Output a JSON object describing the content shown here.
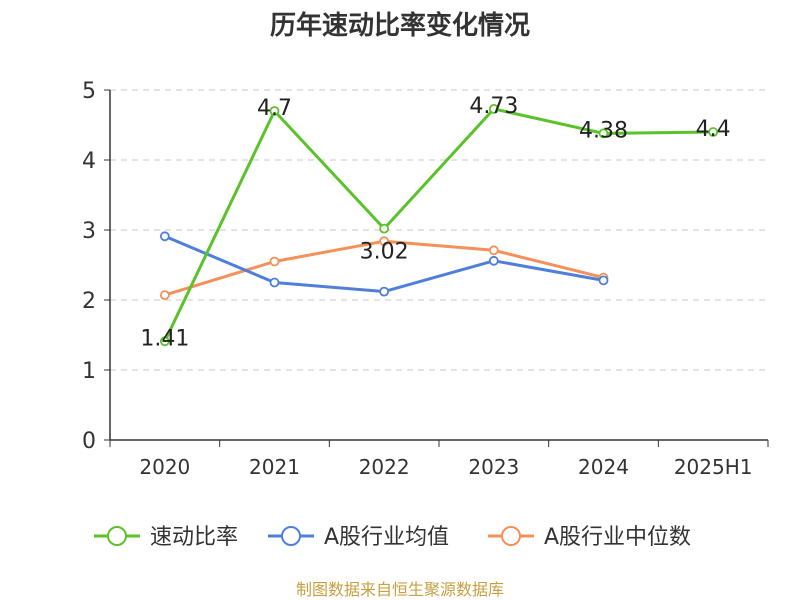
{
  "chart_data": {
    "type": "line",
    "title": "历年速动比率变化情况",
    "categories": [
      "2020",
      "2021",
      "2022",
      "2023",
      "2024",
      "2025H1"
    ],
    "ylim": [
      0,
      5
    ],
    "yticks": [
      "0",
      "1",
      "2",
      "3",
      "4",
      "5"
    ],
    "grid": true,
    "legend_position": "bottom",
    "series": [
      {
        "name": "速动比率",
        "color": "#5bc22a",
        "values": [
          1.41,
          4.7,
          3.02,
          4.73,
          4.38,
          4.4
        ],
        "labels": [
          "1.41",
          "4.7",
          "3.02",
          "4.73",
          "4.38",
          "4.4"
        ]
      },
      {
        "name": "A股行业均值",
        "color": "#4f7fdb",
        "values": [
          2.91,
          2.25,
          2.12,
          2.56,
          2.28,
          null
        ]
      },
      {
        "name": "A股行业中位数",
        "color": "#f4905a",
        "values": [
          2.07,
          2.55,
          2.84,
          2.71,
          2.32,
          null
        ]
      }
    ]
  },
  "footer": "制图数据来自恒生聚源数据库"
}
